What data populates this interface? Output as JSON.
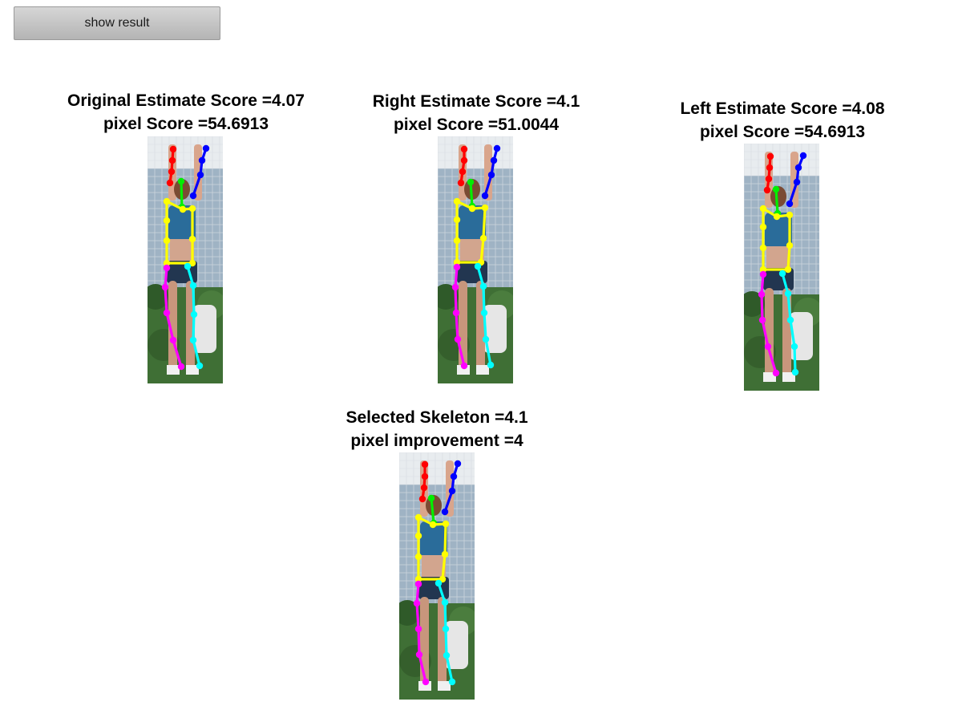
{
  "toolbar": {
    "show_result_label": "show result"
  },
  "panels": [
    {
      "id": "original",
      "title_line1": "Original Estimate Score =4.07",
      "title_line2": "pixel Score =54.6913",
      "photo_icon": "volleyball-player-pose-photo"
    },
    {
      "id": "right",
      "title_line1": "Right Estimate Score =4.1",
      "title_line2": "pixel Score =51.0044",
      "photo_icon": "volleyball-player-pose-photo"
    },
    {
      "id": "left",
      "title_line1": "Left Estimate Score =4.08",
      "title_line2": "pixel Score =54.6913",
      "photo_icon": "volleyball-player-pose-photo"
    },
    {
      "id": "selected",
      "title_line1": "Selected Skeleton =4.1",
      "title_line2": "pixel improvement =4",
      "photo_icon": "volleyball-player-pose-photo"
    }
  ],
  "skeleton_colors": {
    "right_arm": "#ff0000",
    "left_arm": "#0000ff",
    "head": "#00ee00",
    "torso": "#ffff00",
    "right_leg": "#ff00ff",
    "left_leg": "#00ffff"
  }
}
